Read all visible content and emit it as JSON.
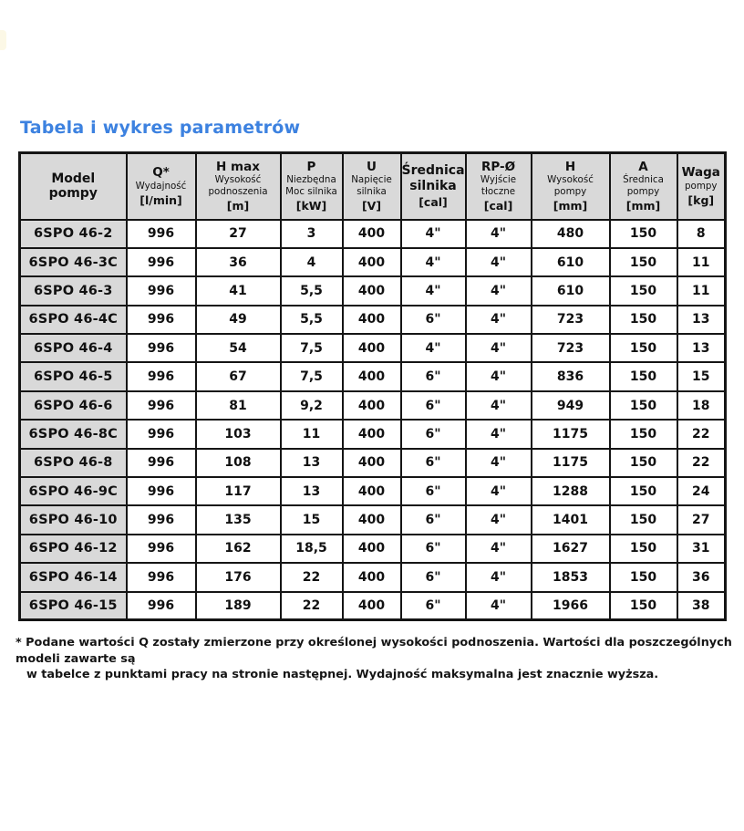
{
  "page": {
    "title": "Tabela i wykres parametrów",
    "accent_color": "#3d82e0",
    "footnote": {
      "line1": "* Podane wartości Q zostały zmierzone przy określonej wysokości podnoszenia. Wartości dla poszczególnych modeli zawarte są",
      "line2": "w tabelce z punktami pracy na stronie następnej. Wydajność maksymalna jest znacznie wyższa."
    }
  },
  "table": {
    "header_bg": "#d9d9d9",
    "columns": [
      {
        "id": "model",
        "top": [
          "Model",
          "pompy"
        ],
        "mid": [],
        "unit": ""
      },
      {
        "id": "q",
        "top": [
          "Q*"
        ],
        "mid": [
          "Wydajność"
        ],
        "unit": "[l/min]"
      },
      {
        "id": "hmax",
        "top": [
          "H max"
        ],
        "mid": [
          "Wysokość",
          "podnoszenia"
        ],
        "unit": "[m]"
      },
      {
        "id": "p",
        "top": [
          "P"
        ],
        "mid": [
          "Niezbędna",
          "Moc silnika"
        ],
        "unit": "[kW]"
      },
      {
        "id": "u",
        "top": [
          "U"
        ],
        "mid": [
          "Napięcie",
          "silnika"
        ],
        "unit": "[V]"
      },
      {
        "id": "srednica-silnika",
        "top": [
          "Średnica",
          "silnika"
        ],
        "mid": [],
        "unit": "[cal]"
      },
      {
        "id": "rp",
        "top": [
          "RP-Ø"
        ],
        "mid": [
          "Wyjście",
          "tłoczne"
        ],
        "unit": "[cal]"
      },
      {
        "id": "h",
        "top": [
          "H"
        ],
        "mid": [
          "Wysokość",
          "pompy"
        ],
        "unit": "[mm]"
      },
      {
        "id": "a",
        "top": [
          "A"
        ],
        "mid": [
          "Średnica",
          "pompy"
        ],
        "unit": "[mm]"
      },
      {
        "id": "waga",
        "top": [
          "Waga"
        ],
        "mid": [
          "pompy"
        ],
        "unit": "[kg]"
      }
    ],
    "rows": [
      {
        "model": "6SPO 46-2",
        "values": [
          "996",
          "27",
          "3",
          "400",
          "4\"",
          "4\"",
          "480",
          "150",
          "8"
        ]
      },
      {
        "model": "6SPO 46-3C",
        "values": [
          "996",
          "36",
          "4",
          "400",
          "4\"",
          "4\"",
          "610",
          "150",
          "11"
        ]
      },
      {
        "model": "6SPO 46-3",
        "values": [
          "996",
          "41",
          "5,5",
          "400",
          "4\"",
          "4\"",
          "610",
          "150",
          "11"
        ]
      },
      {
        "model": "6SPO 46-4C",
        "values": [
          "996",
          "49",
          "5,5",
          "400",
          "6\"",
          "4\"",
          "723",
          "150",
          "13"
        ]
      },
      {
        "model": "6SPO 46-4",
        "values": [
          "996",
          "54",
          "7,5",
          "400",
          "4\"",
          "4\"",
          "723",
          "150",
          "13"
        ]
      },
      {
        "model": "6SPO 46-5",
        "values": [
          "996",
          "67",
          "7,5",
          "400",
          "6\"",
          "4\"",
          "836",
          "150",
          "15"
        ]
      },
      {
        "model": "6SPO 46-6",
        "values": [
          "996",
          "81",
          "9,2",
          "400",
          "6\"",
          "4\"",
          "949",
          "150",
          "18"
        ]
      },
      {
        "model": "6SPO 46-8C",
        "values": [
          "996",
          "103",
          "11",
          "400",
          "6\"",
          "4\"",
          "1175",
          "150",
          "22"
        ]
      },
      {
        "model": "6SPO 46-8",
        "values": [
          "996",
          "108",
          "13",
          "400",
          "6\"",
          "4\"",
          "1175",
          "150",
          "22"
        ]
      },
      {
        "model": "6SPO 46-9C",
        "values": [
          "996",
          "117",
          "13",
          "400",
          "6\"",
          "4\"",
          "1288",
          "150",
          "24"
        ]
      },
      {
        "model": "6SPO 46-10",
        "values": [
          "996",
          "135",
          "15",
          "400",
          "6\"",
          "4\"",
          "1401",
          "150",
          "27"
        ]
      },
      {
        "model": "6SPO 46-12",
        "values": [
          "996",
          "162",
          "18,5",
          "400",
          "6\"",
          "4\"",
          "1627",
          "150",
          "31"
        ]
      },
      {
        "model": "6SPO 46-14",
        "values": [
          "996",
          "176",
          "22",
          "400",
          "6\"",
          "4\"",
          "1853",
          "150",
          "36"
        ]
      },
      {
        "model": "6SPO 46-15",
        "values": [
          "996",
          "189",
          "22",
          "400",
          "6\"",
          "4\"",
          "1966",
          "150",
          "38"
        ]
      }
    ]
  }
}
